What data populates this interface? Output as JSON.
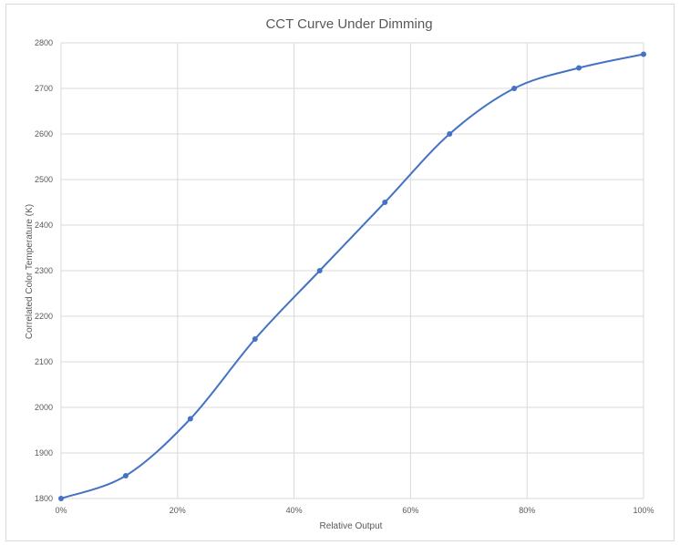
{
  "chart_data": {
    "type": "line",
    "title": "CCT Curve Under Dimming",
    "xlabel": "Relative Output",
    "ylabel": "Correlated Color Temperature (K)",
    "x": [
      0,
      11.1,
      22.2,
      33.3,
      44.4,
      55.6,
      66.7,
      77.8,
      88.9,
      100
    ],
    "series": [
      {
        "values": [
          1800,
          1850,
          1975,
          2150,
          2300,
          2450,
          2600,
          2700,
          2745,
          2775
        ]
      }
    ],
    "xlim": [
      0,
      100
    ],
    "ylim": [
      1800,
      2800
    ],
    "x_ticks": [
      0,
      20,
      40,
      60,
      80,
      100
    ],
    "x_tick_labels": [
      "0%",
      "20%",
      "40%",
      "60%",
      "80%",
      "100%"
    ],
    "y_ticks": [
      1800,
      1900,
      2000,
      2100,
      2200,
      2300,
      2400,
      2500,
      2600,
      2700,
      2800
    ],
    "y_tick_labels": [
      "1800",
      "1900",
      "2000",
      "2100",
      "2200",
      "2300",
      "2400",
      "2500",
      "2600",
      "2700",
      "2800"
    ],
    "grid": true,
    "smooth": true,
    "colors": {
      "series": "#4472c4",
      "grid": "#d9d9d9",
      "text": "#595959"
    }
  }
}
